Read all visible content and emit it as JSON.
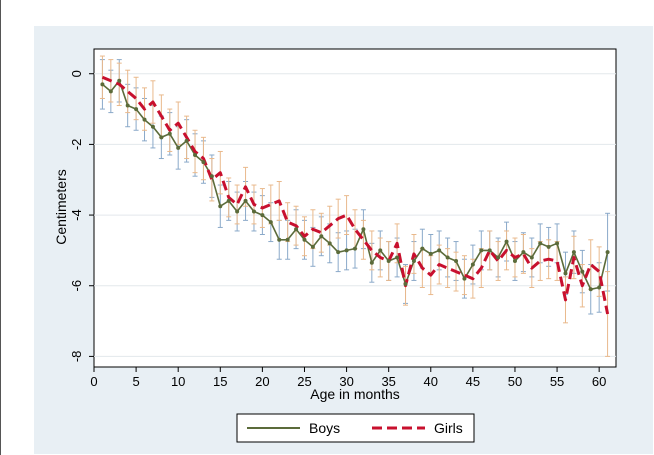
{
  "chart_data": {
    "type": "line",
    "xlabel": "Age in months",
    "ylabel": "Centimeters",
    "xlim": [
      0,
      62
    ],
    "ylim": [
      -8.3,
      0.7
    ],
    "xticks": [
      0,
      5,
      10,
      15,
      20,
      25,
      30,
      35,
      40,
      45,
      50,
      55,
      60
    ],
    "yticks": [
      0,
      -2,
      -4,
      -6,
      -8
    ],
    "grid": "horizontal",
    "legend_position": "bottom",
    "x": [
      1,
      2,
      3,
      4,
      5,
      6,
      7,
      8,
      9,
      10,
      11,
      12,
      13,
      14,
      15,
      16,
      17,
      18,
      19,
      20,
      21,
      22,
      23,
      24,
      25,
      26,
      27,
      28,
      29,
      30,
      31,
      32,
      33,
      34,
      35,
      36,
      37,
      38,
      39,
      40,
      41,
      42,
      43,
      44,
      45,
      46,
      47,
      48,
      49,
      50,
      51,
      52,
      53,
      54,
      55,
      56,
      57,
      58,
      59,
      60,
      61
    ],
    "series": [
      {
        "name": "Boys",
        "color": "#5b6b3a",
        "style": "solid",
        "values": [
          -0.3,
          -0.5,
          -0.2,
          -0.9,
          -1.0,
          -1.3,
          -1.5,
          -1.8,
          -1.7,
          -2.1,
          -1.9,
          -2.3,
          -2.5,
          -2.9,
          -3.75,
          -3.6,
          -3.9,
          -3.6,
          -3.9,
          -4.0,
          -4.2,
          -4.7,
          -4.7,
          -4.4,
          -4.7,
          -4.9,
          -4.6,
          -4.8,
          -5.05,
          -5.0,
          -4.95,
          -4.4,
          -5.35,
          -5.0,
          -5.3,
          -5.2,
          -5.95,
          -5.3,
          -4.95,
          -5.1,
          -5.0,
          -5.2,
          -5.3,
          -5.8,
          -5.4,
          -5.0,
          -5.0,
          -5.2,
          -4.75,
          -5.3,
          -5.05,
          -5.2,
          -4.8,
          -4.9,
          -4.8,
          -5.65,
          -5.05,
          -5.6,
          -6.1,
          -6.05,
          -5.05
        ],
        "error": [
          0.7,
          0.6,
          0.6,
          0.6,
          0.6,
          0.6,
          0.6,
          0.6,
          0.6,
          0.6,
          0.6,
          0.6,
          0.6,
          0.6,
          0.6,
          0.55,
          0.55,
          0.55,
          0.55,
          0.55,
          0.55,
          0.55,
          0.55,
          0.55,
          0.55,
          0.55,
          0.55,
          0.55,
          0.55,
          0.55,
          0.55,
          0.55,
          0.55,
          0.55,
          0.55,
          0.55,
          0.55,
          0.55,
          0.55,
          0.55,
          0.55,
          0.55,
          0.55,
          0.55,
          0.55,
          0.55,
          0.55,
          0.55,
          0.55,
          0.55,
          0.55,
          0.55,
          0.55,
          0.55,
          0.55,
          0.6,
          0.6,
          0.6,
          0.7,
          0.7,
          1.1
        ]
      },
      {
        "name": "Girls",
        "color": "#c8102e",
        "style": "dashed",
        "values": [
          -0.1,
          -0.2,
          -0.3,
          -0.5,
          -0.7,
          -1.0,
          -0.8,
          -1.2,
          -1.6,
          -1.4,
          -1.8,
          -2.2,
          -2.4,
          -3.0,
          -2.8,
          -3.5,
          -3.7,
          -3.2,
          -3.7,
          -3.8,
          -3.7,
          -3.6,
          -4.2,
          -4.3,
          -4.6,
          -4.4,
          -4.5,
          -4.3,
          -4.1,
          -4.0,
          -4.4,
          -4.7,
          -5.0,
          -5.2,
          -5.3,
          -4.8,
          -6.0,
          -5.1,
          -5.5,
          -5.7,
          -5.4,
          -5.5,
          -5.6,
          -5.7,
          -5.8,
          -5.5,
          -5.0,
          -5.3,
          -5.0,
          -5.2,
          -5.1,
          -5.5,
          -5.3,
          -5.25,
          -5.3,
          -6.4,
          -5.2,
          -6.0,
          -5.4,
          -5.6,
          -6.8
        ],
        "error": [
          0.6,
          0.6,
          0.6,
          0.6,
          0.6,
          0.6,
          0.6,
          0.6,
          0.6,
          0.6,
          0.6,
          0.6,
          0.6,
          0.6,
          0.6,
          0.55,
          0.55,
          0.55,
          0.55,
          0.55,
          0.55,
          0.55,
          0.55,
          0.55,
          0.55,
          0.55,
          0.55,
          0.55,
          0.55,
          0.55,
          0.55,
          0.55,
          0.55,
          0.55,
          0.55,
          0.55,
          0.55,
          0.55,
          0.55,
          0.55,
          0.55,
          0.55,
          0.55,
          0.55,
          0.55,
          0.55,
          0.55,
          0.55,
          0.55,
          0.55,
          0.55,
          0.55,
          0.55,
          0.55,
          0.55,
          0.65,
          0.6,
          0.6,
          0.7,
          0.7,
          1.2
        ]
      }
    ],
    "errorbar_colors": {
      "Boys": "#8aa9c9",
      "Girls": "#e9b98c"
    },
    "background_color": "#e8eff4"
  }
}
